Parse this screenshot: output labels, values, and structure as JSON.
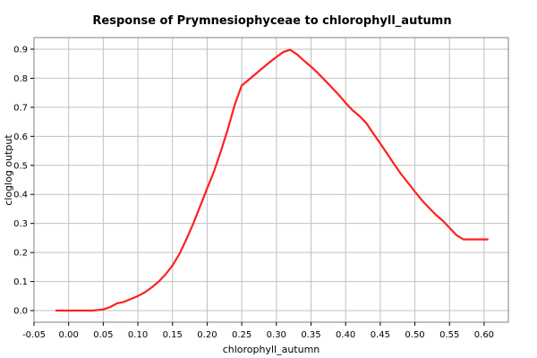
{
  "chart_data": {
    "type": "line",
    "title": "Response of Prymnesiophyceae to chlorophyll_autumn",
    "xlabel": "chlorophyll_autumn",
    "ylabel": "cloglog output",
    "xlim": [
      -0.05,
      0.635
    ],
    "ylim": [
      -0.04,
      0.94
    ],
    "x_ticks": [
      "-0.05",
      "0.00",
      "0.05",
      "0.10",
      "0.15",
      "0.20",
      "0.25",
      "0.30",
      "0.35",
      "0.40",
      "0.45",
      "0.50",
      "0.55",
      "0.60"
    ],
    "x_tick_values": [
      -0.05,
      0.0,
      0.05,
      0.1,
      0.15,
      0.2,
      0.25,
      0.3,
      0.35,
      0.4,
      0.45,
      0.5,
      0.55,
      0.6
    ],
    "y_ticks": [
      "0.0",
      "0.1",
      "0.2",
      "0.3",
      "0.4",
      "0.5",
      "0.6",
      "0.7",
      "0.8",
      "0.9"
    ],
    "y_tick_values": [
      0.0,
      0.1,
      0.2,
      0.3,
      0.4,
      0.5,
      0.6,
      0.7,
      0.8,
      0.9
    ],
    "grid": true,
    "series": [
      {
        "color": "#ff2020",
        "x": [
          -0.018,
          0.0,
          0.02,
          0.035,
          0.05,
          0.06,
          0.07,
          0.08,
          0.09,
          0.1,
          0.11,
          0.12,
          0.13,
          0.14,
          0.15,
          0.16,
          0.17,
          0.18,
          0.19,
          0.2,
          0.21,
          0.22,
          0.23,
          0.24,
          0.25,
          0.26,
          0.27,
          0.28,
          0.29,
          0.3,
          0.31,
          0.32,
          0.33,
          0.34,
          0.35,
          0.36,
          0.37,
          0.38,
          0.39,
          0.4,
          0.41,
          0.42,
          0.43,
          0.44,
          0.45,
          0.46,
          0.47,
          0.48,
          0.49,
          0.5,
          0.51,
          0.52,
          0.53,
          0.54,
          0.55,
          0.56,
          0.57,
          0.58,
          0.59,
          0.605
        ],
        "y": [
          0.0,
          0.0,
          0.0,
          0.0,
          0.004,
          0.012,
          0.025,
          0.03,
          0.04,
          0.05,
          0.063,
          0.08,
          0.1,
          0.125,
          0.155,
          0.195,
          0.245,
          0.3,
          0.36,
          0.42,
          0.48,
          0.55,
          0.625,
          0.71,
          0.775,
          0.795,
          0.815,
          0.835,
          0.855,
          0.873,
          0.89,
          0.898,
          0.882,
          0.86,
          0.84,
          0.818,
          0.793,
          0.768,
          0.743,
          0.715,
          0.69,
          0.67,
          0.645,
          0.61,
          0.575,
          0.54,
          0.505,
          0.47,
          0.44,
          0.41,
          0.38,
          0.355,
          0.33,
          0.31,
          0.285,
          0.26,
          0.245,
          0.245,
          0.245,
          0.245
        ]
      }
    ]
  }
}
